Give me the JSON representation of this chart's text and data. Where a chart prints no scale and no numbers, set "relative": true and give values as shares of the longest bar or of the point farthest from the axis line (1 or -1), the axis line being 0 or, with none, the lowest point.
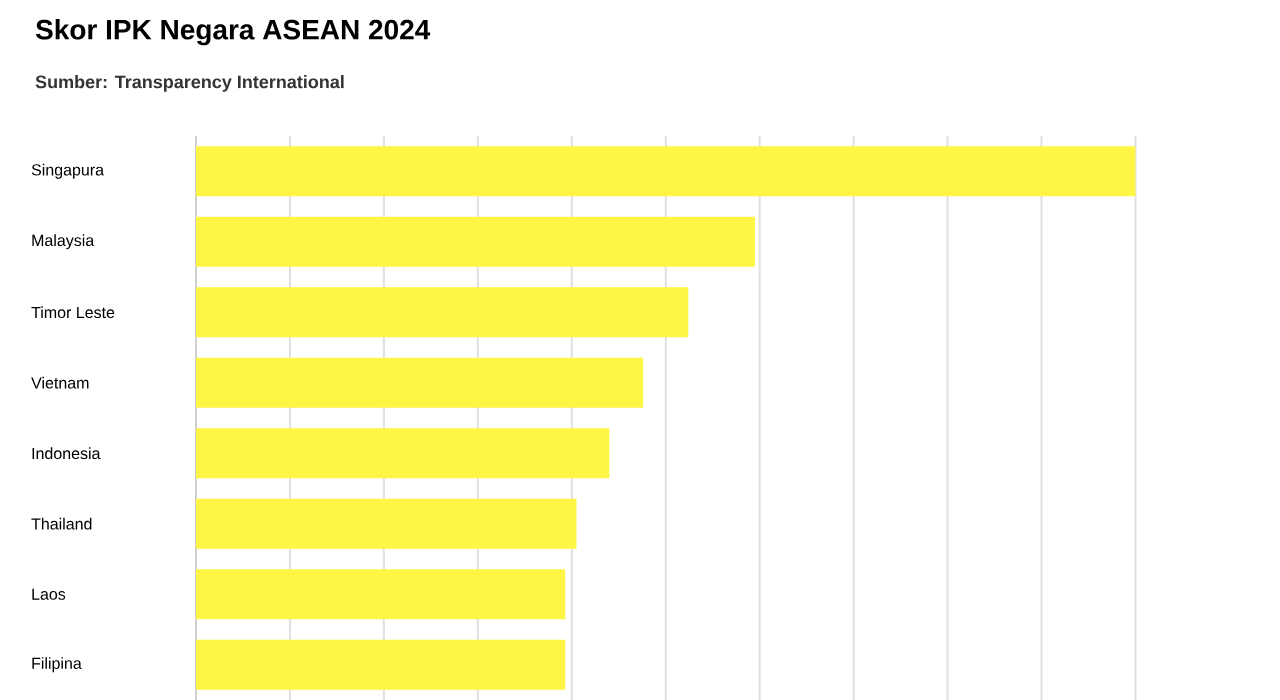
{
  "chart_data": {
    "type": "bar",
    "orientation": "horizontal",
    "relative": true,
    "title": "Skor IPK Negara ASEAN 2024",
    "subtitle": "Sumber: Transparency International",
    "categories": [
      "Singapura",
      "Malaysia",
      "Timor Leste",
      "Vietnam",
      "Indonesia",
      "Thailand",
      "Laos",
      "Filipina"
    ],
    "values": [
      1,
      0.595,
      0.524,
      0.476,
      0.44,
      0.405,
      0.393,
      0.393
    ],
    "color": "#fff544",
    "grid": "x"
  }
}
